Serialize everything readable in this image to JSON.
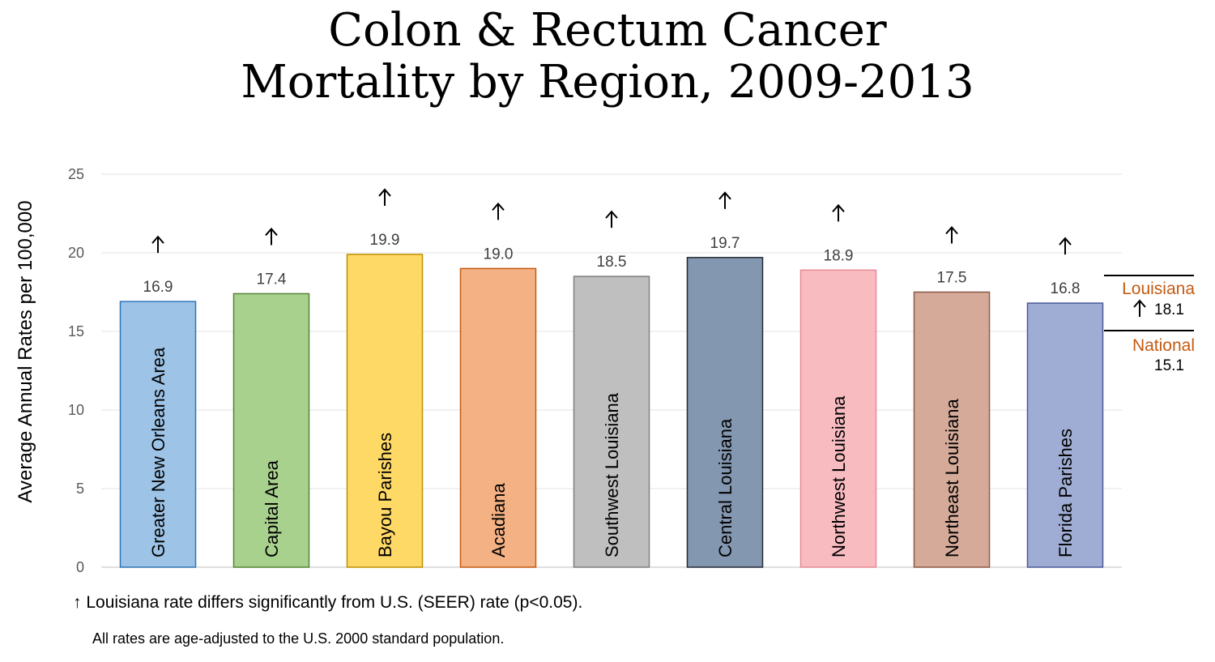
{
  "title_line1": "Colon & Rectum Cancer",
  "title_line2": "Mortality by Region, 2009-2013",
  "ylabel": "Average Annual Rates per 100,000",
  "chart_data": {
    "type": "bar",
    "title": "Colon & Rectum Cancer Mortality by Region, 2009-2013",
    "ylabel": "Average Annual Rates per 100,000",
    "xlabel": "",
    "ylim": [
      0,
      25
    ],
    "yticks": [
      0,
      5,
      10,
      15,
      20,
      25
    ],
    "grid": true,
    "categories": [
      "Greater New Orleans Area",
      "Capital Area",
      "Bayou Parishes",
      "Acadiana",
      "Southwest Louisiana",
      "Central Louisiana",
      "Northwest Louisiana",
      "Northeast Louisiana",
      "Florida Parishes"
    ],
    "values": [
      16.9,
      17.4,
      19.9,
      19.0,
      18.5,
      19.7,
      18.9,
      17.5,
      16.8
    ],
    "value_labels": [
      "16.9",
      "17.4",
      "19.9",
      "19.0",
      "18.5",
      "19.7",
      "18.9",
      "17.5",
      "16.8"
    ],
    "significant": [
      true,
      true,
      true,
      true,
      true,
      true,
      true,
      true,
      true
    ],
    "bar_colors": [
      "#9dc3e6",
      "#a9d18e",
      "#ffd966",
      "#f4b183",
      "#bfbfbf",
      "#8497b0",
      "#f8bcc0",
      "#d5aa99",
      "#9fadd4"
    ],
    "bar_borders": [
      "#2e75b6",
      "#548235",
      "#bf9000",
      "#c55a11",
      "#7f7f7f",
      "#222a35",
      "#e58a94",
      "#8c5a48",
      "#4a5a9a"
    ],
    "reference": [
      {
        "name": "Louisiana",
        "value": 18.1,
        "label": "18.1",
        "significant": true
      },
      {
        "name": "National",
        "value": 15.1,
        "label": "15.1",
        "significant": false
      }
    ]
  },
  "footnote_arrow": "↑",
  "footnote_significance": "Louisiana rate differs significantly from U.S. (SEER) rate (p<0.05).",
  "footnote_age_adjusted": "All rates are age-adjusted to the U.S. 2000 standard population."
}
